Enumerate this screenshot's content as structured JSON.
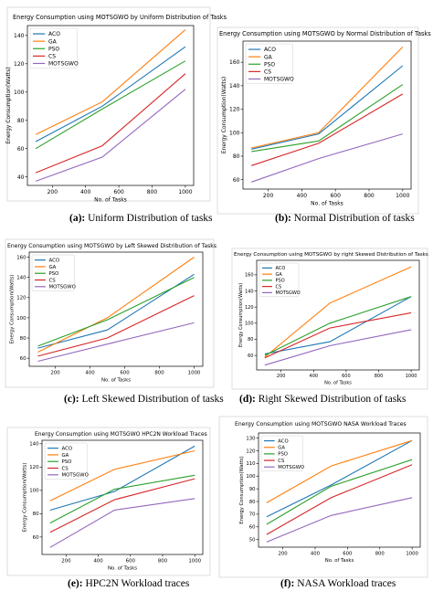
{
  "colors": {
    "ACO": "#1f77b4",
    "GA": "#ff7f0e",
    "PSO": "#2ca02c",
    "CS": "#d62728",
    "MOTSGWO": "#9467bd"
  },
  "captions": [
    {
      "tag": "(a):",
      "text": " Uniform Distribution of tasks"
    },
    {
      "tag": "(b):",
      "text": "  Normal Distribution of tasks"
    },
    {
      "tag": "(c):",
      "text": " Left Skewed Distribution of tasks"
    },
    {
      "tag": "(d):",
      "text": " Right Skewed Distribution of tasks"
    },
    {
      "tag": "(e):",
      "text": "  HPC2N Workload traces"
    },
    {
      "tag": "(f):",
      "text": "  NASA Workload traces"
    }
  ],
  "chart_data": [
    {
      "type": "line",
      "title": "Energy Consumption using MOTSGWO by Uniform Distribution of Tasks",
      "xlabel": "No. of Tasks",
      "ylabel": "Energy Consumption(Watts)",
      "x": [
        100,
        500,
        1000
      ],
      "xticks": [
        200,
        400,
        600,
        800,
        1000
      ],
      "yticks": [
        40,
        60,
        80,
        100,
        120,
        140
      ],
      "xlim": [
        50,
        1050
      ],
      "ylim": [
        34,
        147
      ],
      "legend": "top-left",
      "series": [
        {
          "name": "ACO",
          "values": [
            65,
            90,
            132
          ]
        },
        {
          "name": "GA",
          "values": [
            70,
            93,
            144
          ]
        },
        {
          "name": "PSO",
          "values": [
            60,
            88,
            122
          ]
        },
        {
          "name": "CS",
          "values": [
            43,
            62,
            113
          ]
        },
        {
          "name": "MOTSGWO",
          "values": [
            37,
            54,
            102
          ]
        }
      ]
    },
    {
      "type": "line",
      "title": "Energy Consumption using MOTSGWO by Normal Distribution of Tasks",
      "xlabel": "No. of Tasks",
      "ylabel": "Energy Consumption(Watts)",
      "x": [
        100,
        500,
        1000
      ],
      "xticks": [
        200,
        400,
        600,
        800,
        1000
      ],
      "yticks": [
        60,
        80,
        100,
        120,
        140,
        160
      ],
      "xlim": [
        50,
        1050
      ],
      "ylim": [
        52,
        178
      ],
      "legend": "top-left",
      "series": [
        {
          "name": "ACO",
          "values": [
            86,
            99,
            157
          ]
        },
        {
          "name": "GA",
          "values": [
            87,
            100,
            173
          ]
        },
        {
          "name": "PSO",
          "values": [
            84,
            93,
            141
          ]
        },
        {
          "name": "CS",
          "values": [
            72,
            91,
            133
          ]
        },
        {
          "name": "MOTSGWO",
          "values": [
            58,
            78,
            99
          ]
        }
      ]
    },
    {
      "type": "line",
      "title": "Energy Consumption using MOTSGWO by Left Skewed Distribution of Tasks",
      "xlabel": "No. of Tasks",
      "ylabel": "Energy Consumption(Watts)",
      "x": [
        100,
        500,
        1000
      ],
      "xticks": [
        200,
        400,
        600,
        800,
        1000
      ],
      "yticks": [
        60,
        80,
        100,
        120,
        140,
        160
      ],
      "xlim": [
        50,
        1050
      ],
      "ylim": [
        52,
        165
      ],
      "legend": "top-left",
      "series": [
        {
          "name": "ACO",
          "values": [
            70,
            88,
            143
          ]
        },
        {
          "name": "GA",
          "values": [
            66,
            100,
            160
          ]
        },
        {
          "name": "PSO",
          "values": [
            72,
            98,
            140
          ]
        },
        {
          "name": "CS",
          "values": [
            62,
            80,
            122
          ]
        },
        {
          "name": "MOTSGWO",
          "values": [
            57,
            74,
            95
          ]
        }
      ]
    },
    {
      "type": "line",
      "title": "Energy Consumption using MOTSGWO by right Skewed Distribution of Tasks",
      "xlabel": "No. of Tasks",
      "ylabel": "Energy Consumption(Watts)",
      "x": [
        100,
        500,
        1000
      ],
      "xticks": [
        200,
        400,
        600,
        800,
        1000
      ],
      "yticks": [
        60,
        80,
        100,
        120,
        140,
        160
      ],
      "xlim": [
        50,
        1050
      ],
      "ylim": [
        42,
        178
      ],
      "legend": "top-left",
      "series": [
        {
          "name": "ACO",
          "values": [
            62,
            77,
            133
          ]
        },
        {
          "name": "GA",
          "values": [
            58,
            125,
            170
          ]
        },
        {
          "name": "PSO",
          "values": [
            60,
            100,
            133
          ]
        },
        {
          "name": "CS",
          "values": [
            57,
            94,
            113
          ]
        },
        {
          "name": "MOTSGWO",
          "values": [
            48,
            72,
            92
          ]
        }
      ]
    },
    {
      "type": "line",
      "title": "Energy Consumption using MOTSGWO HPC2N Workload Traces",
      "xlabel": "No. of Tasks",
      "ylabel": "Energy Consumption(Watts)",
      "x": [
        100,
        500,
        1000
      ],
      "xticks": [
        200,
        400,
        600,
        800,
        1000
      ],
      "yticks": [
        60,
        80,
        100,
        120,
        140
      ],
      "xlim": [
        50,
        1050
      ],
      "ylim": [
        45,
        143
      ],
      "legend": "top-left",
      "series": [
        {
          "name": "ACO",
          "values": [
            83,
            99,
            138
          ]
        },
        {
          "name": "GA",
          "values": [
            91,
            118,
            134
          ]
        },
        {
          "name": "PSO",
          "values": [
            72,
            101,
            113
          ]
        },
        {
          "name": "CS",
          "values": [
            64,
            92,
            110
          ]
        },
        {
          "name": "MOTSGWO",
          "values": [
            51,
            83,
            93
          ]
        }
      ]
    },
    {
      "type": "line",
      "title": "Energy Consumption using MOTSGWO NASA Workload Traces",
      "xlabel": "No. of Tasks",
      "ylabel": "Energy Consumption(Watts)",
      "x": [
        100,
        500,
        1000
      ],
      "xticks": [
        200,
        400,
        600,
        800,
        1000
      ],
      "yticks": [
        50,
        60,
        70,
        80,
        90,
        100,
        110,
        120,
        130
      ],
      "xlim": [
        50,
        1050
      ],
      "ylim": [
        44,
        134
      ],
      "legend": "top-left",
      "series": [
        {
          "name": "ACO",
          "values": [
            68,
            93,
            128
          ]
        },
        {
          "name": "GA",
          "values": [
            79,
            108,
            128
          ]
        },
        {
          "name": "PSO",
          "values": [
            62,
            92,
            113
          ]
        },
        {
          "name": "CS",
          "values": [
            54,
            83,
            109
          ]
        },
        {
          "name": "MOTSGWO",
          "values": [
            48,
            69,
            83
          ]
        }
      ]
    }
  ]
}
